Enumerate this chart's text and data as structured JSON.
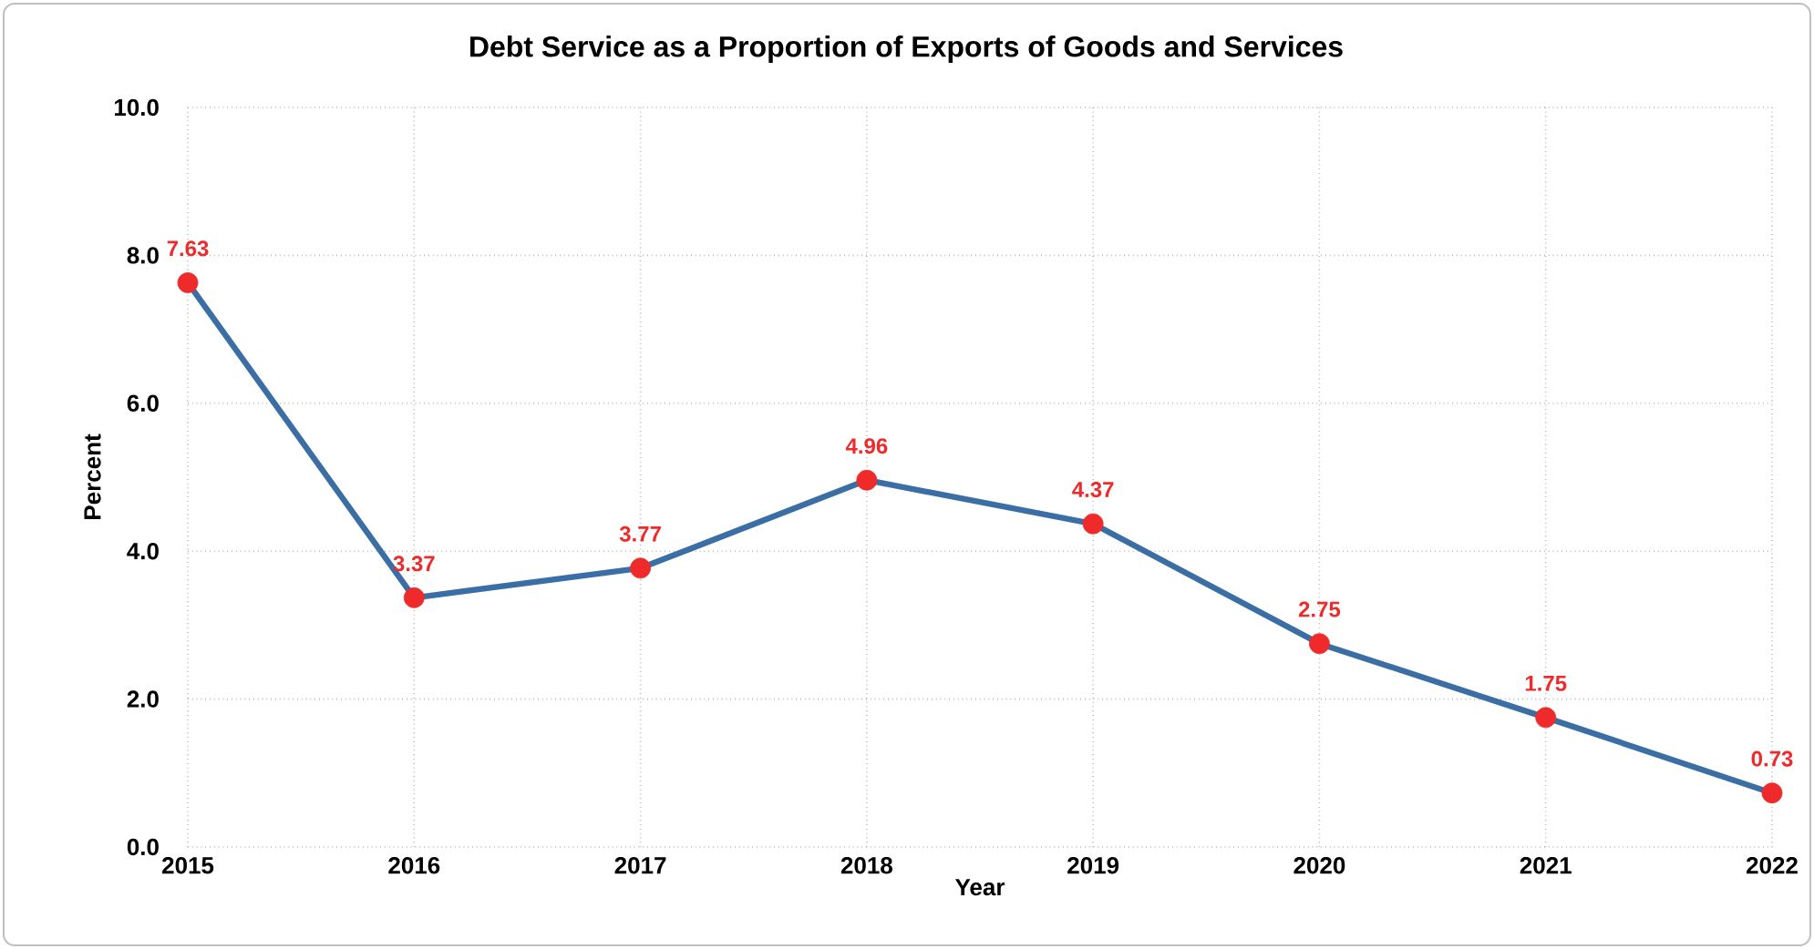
{
  "chart_data": {
    "type": "line",
    "title": "Debt Service as a Proportion of Exports of Goods and Services",
    "xlabel": "Year",
    "ylabel": "Percent",
    "x": [
      2015,
      2016,
      2017,
      2018,
      2019,
      2020,
      2021,
      2022
    ],
    "series": [
      {
        "color": "#3a6ea5",
        "colors": [
          "#ee2a2a",
          "#ee2a2a",
          "#ee2a2a",
          "#ee2a2a",
          "#ee2a2a",
          "#ee2a2a",
          "#ee2a2a",
          "#ee2a2a"
        ],
        "values": [
          7.63,
          3.37,
          3.77,
          4.96,
          4.37,
          2.75,
          1.75,
          0.73
        ]
      }
    ],
    "marker": "circle",
    "data_labels": true,
    "grid": true,
    "line_style": "solid",
    "xlim": [
      2015,
      2022
    ],
    "xticks": [
      2015,
      2016,
      2017,
      2018,
      2019,
      2020,
      2021,
      2022
    ],
    "ylim": [
      0,
      10
    ],
    "yticks": [
      {
        "value": 0,
        "label": "0.0"
      },
      {
        "value": 2,
        "label": "2.0"
      },
      {
        "value": 4,
        "label": "4.0"
      },
      {
        "value": 6,
        "label": "6.0"
      },
      {
        "value": 8,
        "label": "8.0"
      },
      {
        "value": 10,
        "label": "10.0"
      }
    ]
  }
}
